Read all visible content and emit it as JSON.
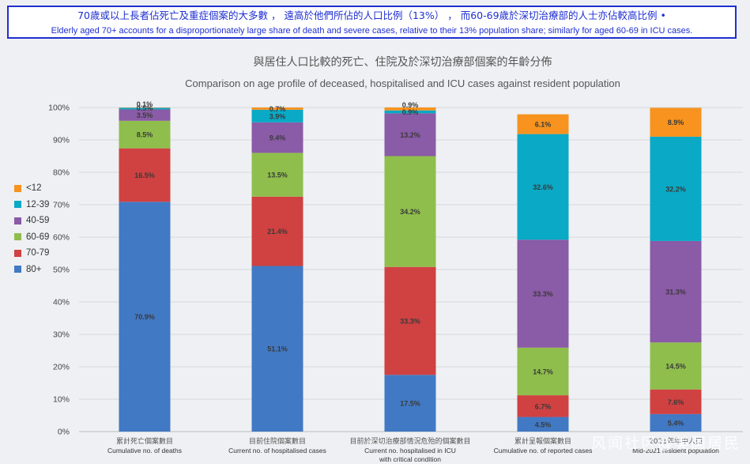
{
  "banner": {
    "zh": "70歲或以上長者佔死亡及重症個案的大多數 ， 遠高於他們所佔的人口比例（13%） ， 而60-69歲於深切治療部的人士亦佔較高比例 •",
    "en": "Elderly aged 70+ accounts for a disproportionately large share of death and severe cases, relative to their 13% population share; similarly for aged 60-69 in ICU cases."
  },
  "watermark": "风闻社区@美国居民",
  "colors": {
    "80+": "#4179c4",
    "70-79": "#d04141",
    "60-69": "#8fbe4c",
    "40-59": "#8a5ba6",
    "12-39": "#0aa9c6",
    "<12": "#f7931e"
  },
  "chart_data": {
    "type": "bar",
    "stacked": true,
    "title": "與居住人口比較的死亡、住院及於深切治療部個案的年齡分佈",
    "subtitle": "Comparison on age profile of deceased, hospitalised and ICU cases against resident population",
    "ylim": [
      0,
      100
    ],
    "yticks": [
      "0%",
      "10%",
      "20%",
      "30%",
      "40%",
      "50%",
      "60%",
      "70%",
      "80%",
      "90%",
      "100%"
    ],
    "legend_position": "left",
    "categories": [
      {
        "zh": "累計死亡個案數目",
        "en": "Cumulative no. of deaths"
      },
      {
        "zh": "目前住院個案數目",
        "en": "Current no. of hospitalised cases"
      },
      {
        "zh": "目前於深切治療部情況危殆的個案數目",
        "en": "Current no. hospitalised in ICU with critical condition"
      },
      {
        "zh": "累計呈報個案數目",
        "en": "Cumulative no. of reported cases"
      },
      {
        "zh": "2021年年中人口",
        "en": "Mid-2021 resident population"
      }
    ],
    "series": [
      {
        "name": "80+",
        "values": [
          70.9,
          51.1,
          17.5,
          4.5,
          5.4
        ]
      },
      {
        "name": "70-79",
        "values": [
          16.5,
          21.4,
          33.3,
          6.7,
          7.6
        ]
      },
      {
        "name": "60-69",
        "values": [
          8.5,
          13.5,
          34.2,
          14.7,
          14.5
        ]
      },
      {
        "name": "40-59",
        "values": [
          3.5,
          9.4,
          13.2,
          33.3,
          31.3
        ]
      },
      {
        "name": "12-39",
        "values": [
          0.5,
          3.9,
          0.9,
          32.6,
          32.2
        ]
      },
      {
        "name": "<12",
        "values": [
          0.1,
          0.7,
          0.9,
          6.1,
          8.9
        ]
      }
    ],
    "data_labels": [
      [
        "70.9%",
        "16.5%",
        "8.5%",
        "3.5%",
        "0.5%",
        "0.1%"
      ],
      [
        "51.1%",
        "21.4%",
        "13.5%",
        "9.4%",
        "3.9%",
        "0.7%"
      ],
      [
        "17.5%",
        "33.3%",
        "34.2%",
        "13.2%",
        "0.9%",
        "0.9%"
      ],
      [
        "4.5%",
        "6.7%",
        "14.7%",
        "33.3%",
        "32.6%",
        "6.1%"
      ],
      [
        "5.4%",
        "7.6%",
        "14.5%",
        "31.3%",
        "32.2%",
        "8.9%"
      ]
    ],
    "legend_order": [
      "<12",
      "12-39",
      "40-59",
      "60-69",
      "70-79",
      "80+"
    ]
  }
}
